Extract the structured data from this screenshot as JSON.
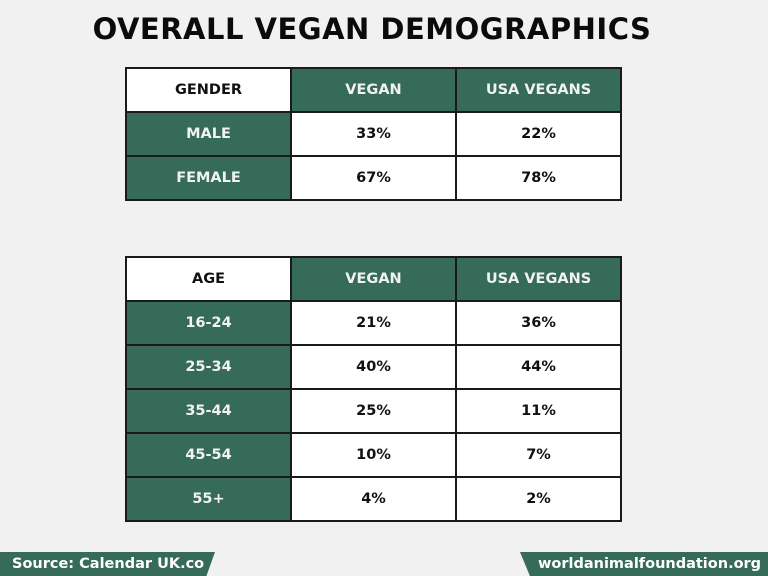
{
  "title": "OVERALL VEGAN DEMOGRAPHICS",
  "colors": {
    "accent": "#356b58",
    "background": "#f1f1f1"
  },
  "gender_table": {
    "headers": [
      "GENDER",
      "VEGAN",
      "USA VEGANS"
    ],
    "rows": [
      [
        "MALE",
        "33%",
        "22%"
      ],
      [
        "FEMALE",
        "67%",
        "78%"
      ]
    ]
  },
  "age_table": {
    "headers": [
      "AGE",
      "VEGAN",
      "USA VEGANS"
    ],
    "rows": [
      [
        "16-24",
        "21%",
        "36%"
      ],
      [
        "25-34",
        "40%",
        "44%"
      ],
      [
        "35-44",
        "25%",
        "11%"
      ],
      [
        "45-54",
        "10%",
        "7%"
      ],
      [
        "55+",
        "4%",
        "2%"
      ]
    ]
  },
  "footer": {
    "source": "Source: Calendar UK.co",
    "website": "worldanimalfoundation.org"
  }
}
